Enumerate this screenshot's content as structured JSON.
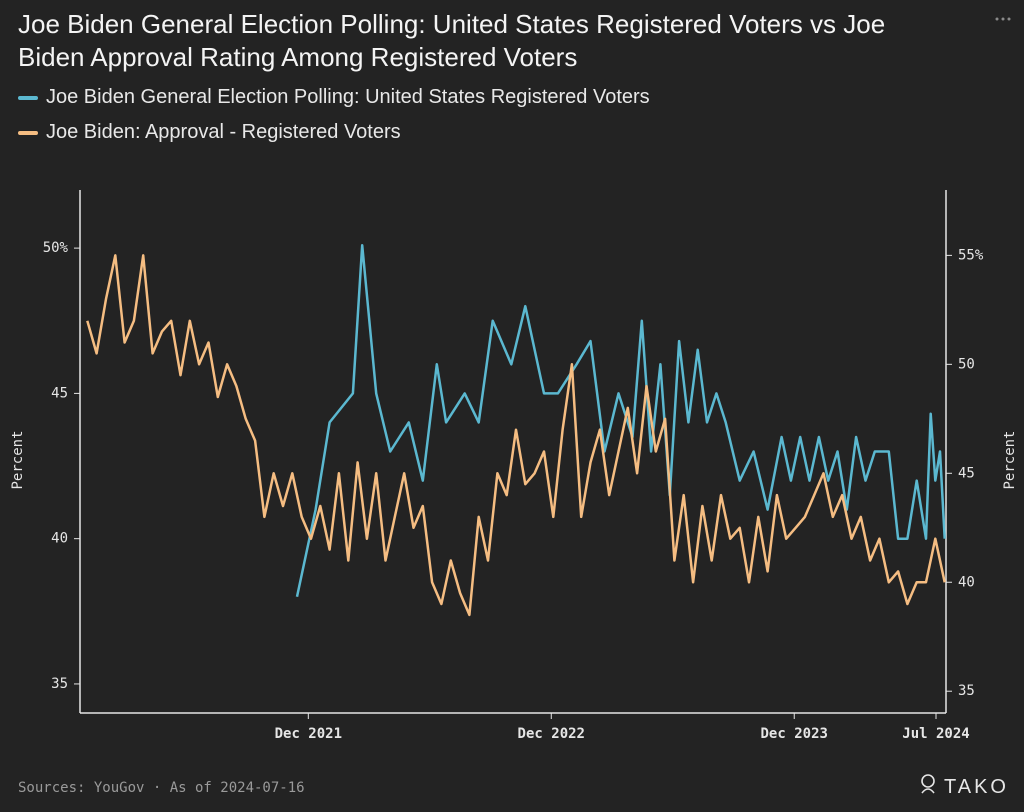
{
  "chart_data": {
    "type": "line",
    "title": "Joe Biden General Election Polling: United States Registered Voters vs Joe Biden Approval Rating Among Registered Voters",
    "y_label": "Percent",
    "y2_label": "Percent",
    "source": "Sources: YouGov · As of 2024-07-16",
    "logo": "TAKO",
    "xlim": [
      "2020-12-23",
      "2024-07-16"
    ],
    "xticks": [
      {
        "value": "2021-12-01",
        "label": "Dec 2021"
      },
      {
        "value": "2022-12-01",
        "label": "Dec 2022"
      },
      {
        "value": "2023-12-01",
        "label": "Dec 2023"
      },
      {
        "value": "2024-07-01",
        "label": "Jul 2024"
      }
    ],
    "ylim": [
      34,
      52
    ],
    "yticks": [
      35,
      40,
      45,
      {
        "value": 50,
        "label": "50%"
      }
    ],
    "y2lim": [
      34,
      58
    ],
    "y2ticks": [
      35,
      40,
      45,
      50,
      {
        "value": 55,
        "label": "55%"
      }
    ],
    "series": [
      {
        "name": "Joe Biden General Election Polling: United States Registered Voters",
        "color": "#5bb8d0",
        "x": [
          "2021-11-14",
          "2021-12-12",
          "2022-01-02",
          "2022-02-06",
          "2022-02-20",
          "2022-03-13",
          "2022-04-03",
          "2022-05-01",
          "2022-05-22",
          "2022-06-12",
          "2022-06-26",
          "2022-07-24",
          "2022-08-14",
          "2022-09-04",
          "2022-10-02",
          "2022-10-23",
          "2022-11-20",
          "2022-12-11",
          "2023-01-08",
          "2023-01-29",
          "2023-02-19",
          "2023-03-12",
          "2023-04-02",
          "2023-04-16",
          "2023-04-30",
          "2023-05-14",
          "2023-05-28",
          "2023-06-11",
          "2023-06-25",
          "2023-07-09",
          "2023-07-23",
          "2023-08-06",
          "2023-08-20",
          "2023-09-10",
          "2023-10-01",
          "2023-10-22",
          "2023-11-12",
          "2023-11-26",
          "2023-12-10",
          "2023-12-24",
          "2024-01-07",
          "2024-01-21",
          "2024-02-04",
          "2024-02-18",
          "2024-03-03",
          "2024-03-17",
          "2024-03-31",
          "2024-04-21",
          "2024-05-05",
          "2024-05-19",
          "2024-06-02",
          "2024-06-16",
          "2024-06-23",
          "2024-06-30",
          "2024-07-07",
          "2024-07-14"
        ],
        "values": [
          38,
          41,
          44,
          45,
          50.1,
          45,
          43,
          44,
          42,
          46,
          44,
          45,
          44,
          47.5,
          46,
          48,
          45,
          45,
          46,
          46.8,
          43,
          45,
          43.5,
          47.5,
          43,
          46,
          41.5,
          46.8,
          44,
          46.5,
          44,
          45,
          44,
          42,
          43,
          41,
          43.5,
          42,
          43.5,
          42,
          43.5,
          42,
          43,
          41,
          43.5,
          42,
          43,
          43,
          40,
          40,
          42,
          40,
          44.3,
          42,
          43,
          40
        ]
      },
      {
        "name": "Joe Biden: Approval - Registered Voters",
        "color": "#f5bd82",
        "axis": "y2",
        "x": [
          "2021-01-03",
          "2021-01-17",
          "2021-01-31",
          "2021-02-14",
          "2021-02-28",
          "2021-03-14",
          "2021-03-28",
          "2021-04-11",
          "2021-04-25",
          "2021-05-09",
          "2021-05-23",
          "2021-06-06",
          "2021-06-20",
          "2021-07-04",
          "2021-07-18",
          "2021-08-01",
          "2021-08-15",
          "2021-08-29",
          "2021-09-12",
          "2021-09-26",
          "2021-10-10",
          "2021-10-24",
          "2021-11-07",
          "2021-11-21",
          "2021-12-05",
          "2021-12-19",
          "2022-01-02",
          "2022-01-16",
          "2022-01-30",
          "2022-02-13",
          "2022-02-27",
          "2022-03-13",
          "2022-03-27",
          "2022-04-10",
          "2022-04-24",
          "2022-05-08",
          "2022-05-22",
          "2022-06-05",
          "2022-06-19",
          "2022-07-03",
          "2022-07-17",
          "2022-07-31",
          "2022-08-14",
          "2022-08-28",
          "2022-09-11",
          "2022-09-25",
          "2022-10-09",
          "2022-10-23",
          "2022-11-06",
          "2022-11-20",
          "2022-12-04",
          "2022-12-18",
          "2023-01-01",
          "2023-01-15",
          "2023-01-29",
          "2023-02-12",
          "2023-02-26",
          "2023-03-12",
          "2023-03-26",
          "2023-04-09",
          "2023-04-23",
          "2023-05-07",
          "2023-05-21",
          "2023-06-04",
          "2023-06-18",
          "2023-07-02",
          "2023-07-16",
          "2023-07-30",
          "2023-08-13",
          "2023-08-27",
          "2023-09-10",
          "2023-09-24",
          "2023-10-08",
          "2023-10-22",
          "2023-11-05",
          "2023-11-19",
          "2023-12-03",
          "2023-12-17",
          "2023-12-31",
          "2024-01-14",
          "2024-01-28",
          "2024-02-11",
          "2024-02-25",
          "2024-03-10",
          "2024-03-24",
          "2024-04-07",
          "2024-04-21",
          "2024-05-05",
          "2024-05-19",
          "2024-06-02",
          "2024-06-16",
          "2024-06-30",
          "2024-07-14"
        ],
        "values": [
          52,
          50.5,
          53,
          55,
          51,
          52,
          55,
          50.5,
          51.5,
          52,
          49.5,
          52,
          50,
          51,
          48.5,
          50,
          49,
          47.5,
          46.5,
          43,
          45,
          43.5,
          45,
          43,
          42,
          43.5,
          41.5,
          45,
          41,
          45.5,
          42,
          45,
          41,
          43,
          45,
          42.5,
          43.5,
          40,
          39,
          41,
          39.5,
          38.5,
          43,
          41,
          45,
          44,
          47,
          44.5,
          45,
          46,
          43,
          47,
          50,
          43,
          45.5,
          47,
          44,
          46,
          48,
          45,
          49,
          46,
          47.5,
          41,
          44,
          40,
          43.5,
          41,
          44,
          42,
          42.5,
          40,
          43,
          40.5,
          44,
          42,
          42.5,
          43,
          44,
          45,
          43,
          44,
          42,
          43,
          41,
          42,
          40,
          40.5,
          39,
          40,
          40,
          42,
          40
        ]
      }
    ]
  }
}
